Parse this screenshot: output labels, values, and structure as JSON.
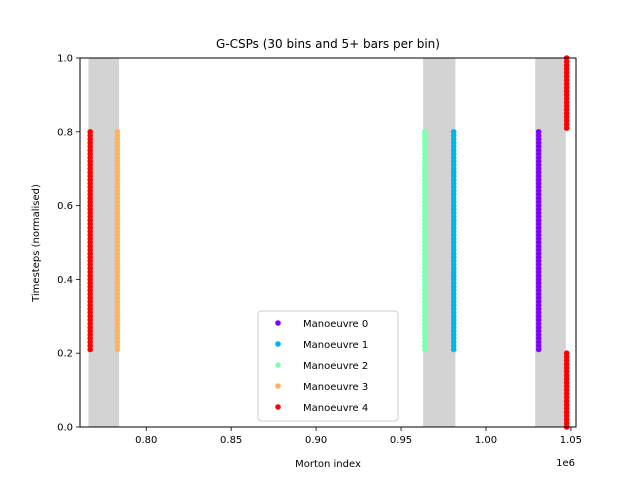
{
  "chart_data": {
    "type": "scatter",
    "title": "G-CSPs (30 bins and 5+ bars per bin)",
    "xlabel": "Morton index",
    "ylabel": "Timesteps (normalised)",
    "x_offset_label": "1e6",
    "xlim": [
      761000,
      1053000
    ],
    "ylim": [
      0.0,
      1.0
    ],
    "x_ticks": [
      0.8,
      0.85,
      0.9,
      0.95,
      1.0,
      1.05
    ],
    "x_tick_labels": [
      "0.80",
      "0.85",
      "0.90",
      "0.95",
      "1.00",
      "1.05"
    ],
    "y_ticks": [
      0.0,
      0.2,
      0.4,
      0.6,
      0.8,
      1.0
    ],
    "y_tick_labels": [
      "0.0",
      "0.2",
      "0.4",
      "0.6",
      "0.8",
      "1.0"
    ],
    "grid": false,
    "legend_position": "lower center",
    "bands": [
      {
        "x_start": 766000,
        "x_end": 784000,
        "color": "#d3d3d3"
      },
      {
        "x_start": 963000,
        "x_end": 982000,
        "color": "#d3d3d3"
      },
      {
        "x_start": 1029000,
        "x_end": 1047000,
        "color": "#d3d3d3"
      }
    ],
    "series": [
      {
        "name": "Manoeuvre 0",
        "color": "#8000ff",
        "segments": [
          {
            "x": 1031000,
            "y_start": 0.21,
            "y_end": 0.8
          }
        ]
      },
      {
        "name": "Manoeuvre 1",
        "color": "#00b4eb",
        "segments": [
          {
            "x": 981000,
            "y_start": 0.21,
            "y_end": 0.8
          }
        ]
      },
      {
        "name": "Manoeuvre 2",
        "color": "#80ffb4",
        "segments": [
          {
            "x": 964000,
            "y_start": 0.21,
            "y_end": 0.8
          }
        ]
      },
      {
        "name": "Manoeuvre 3",
        "color": "#ffb360",
        "segments": [
          {
            "x": 783000,
            "y_start": 0.21,
            "y_end": 0.8
          }
        ]
      },
      {
        "name": "Manoeuvre 4",
        "color": "#ff0000",
        "segments": [
          {
            "x": 767000,
            "y_start": 0.21,
            "y_end": 0.8
          },
          {
            "x": 1047500,
            "y_start": 0.81,
            "y_end": 1.0
          },
          {
            "x": 1047500,
            "y_start": 0.0,
            "y_end": 0.2
          }
        ]
      }
    ]
  }
}
